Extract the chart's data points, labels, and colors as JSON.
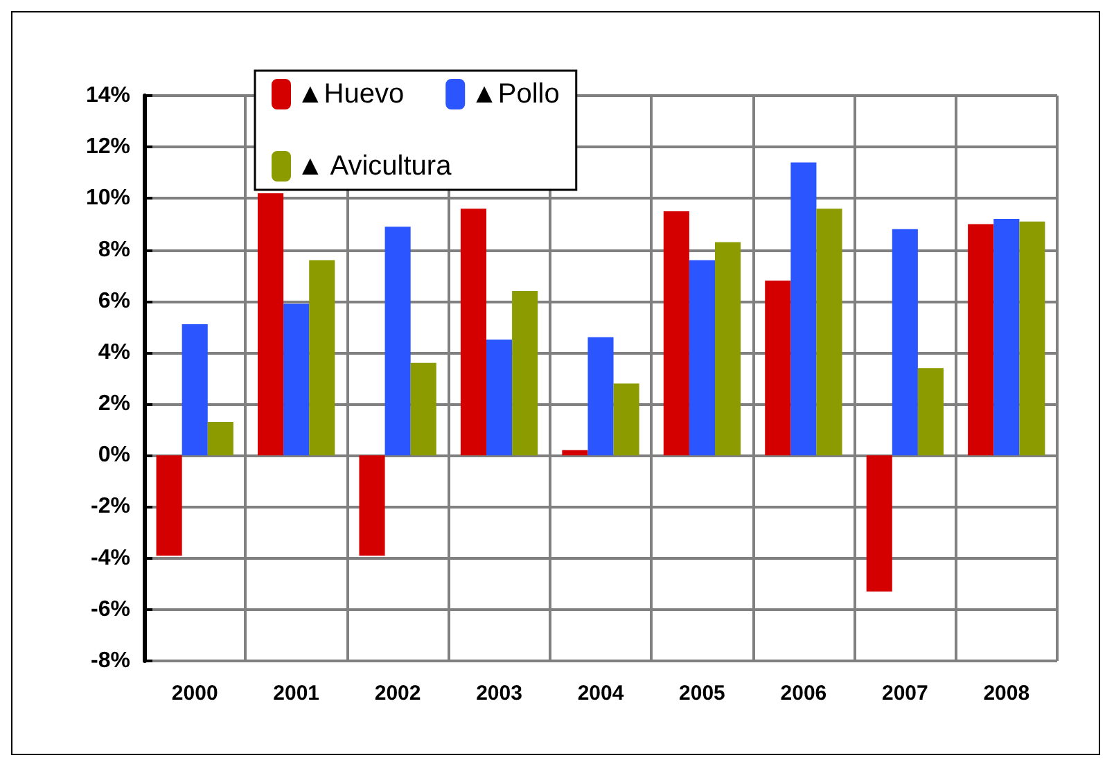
{
  "chart_data": {
    "type": "bar",
    "categories": [
      "2000",
      "2001",
      "2002",
      "2003",
      "2004",
      "2005",
      "2006",
      "2007",
      "2008"
    ],
    "series": [
      {
        "name": "▲Huevo",
        "color": "#d40000",
        "values": [
          -3.9,
          10.2,
          -3.9,
          9.6,
          0.2,
          9.5,
          6.8,
          -5.3,
          9.0
        ]
      },
      {
        "name": "▲Pollo",
        "color": "#2a55ff",
        "values": [
          5.1,
          5.9,
          8.9,
          4.5,
          4.6,
          7.6,
          11.4,
          8.8,
          9.2
        ]
      },
      {
        "name": "▲ Avicultura",
        "color": "#8c9c00",
        "values": [
          1.3,
          7.6,
          3.6,
          6.4,
          2.8,
          8.3,
          9.6,
          3.4,
          9.1
        ]
      }
    ],
    "ylim": [
      -8,
      14
    ],
    "yticks": [
      {
        "value": -8,
        "label": "-8%"
      },
      {
        "value": -6,
        "label": "-6%"
      },
      {
        "value": -4,
        "label": "-4%"
      },
      {
        "value": -2,
        "label": "-2%"
      },
      {
        "value": 0,
        "label": "0%"
      },
      {
        "value": 2,
        "label": "2%"
      },
      {
        "value": 4,
        "label": "4%"
      },
      {
        "value": 6,
        "label": "6%"
      },
      {
        "value": 8,
        "label": "8%"
      },
      {
        "value": 10,
        "label": "10%"
      },
      {
        "value": 12,
        "label": "12%"
      },
      {
        "value": 14,
        "label": "14%"
      }
    ],
    "grid": true,
    "legend": "top"
  }
}
